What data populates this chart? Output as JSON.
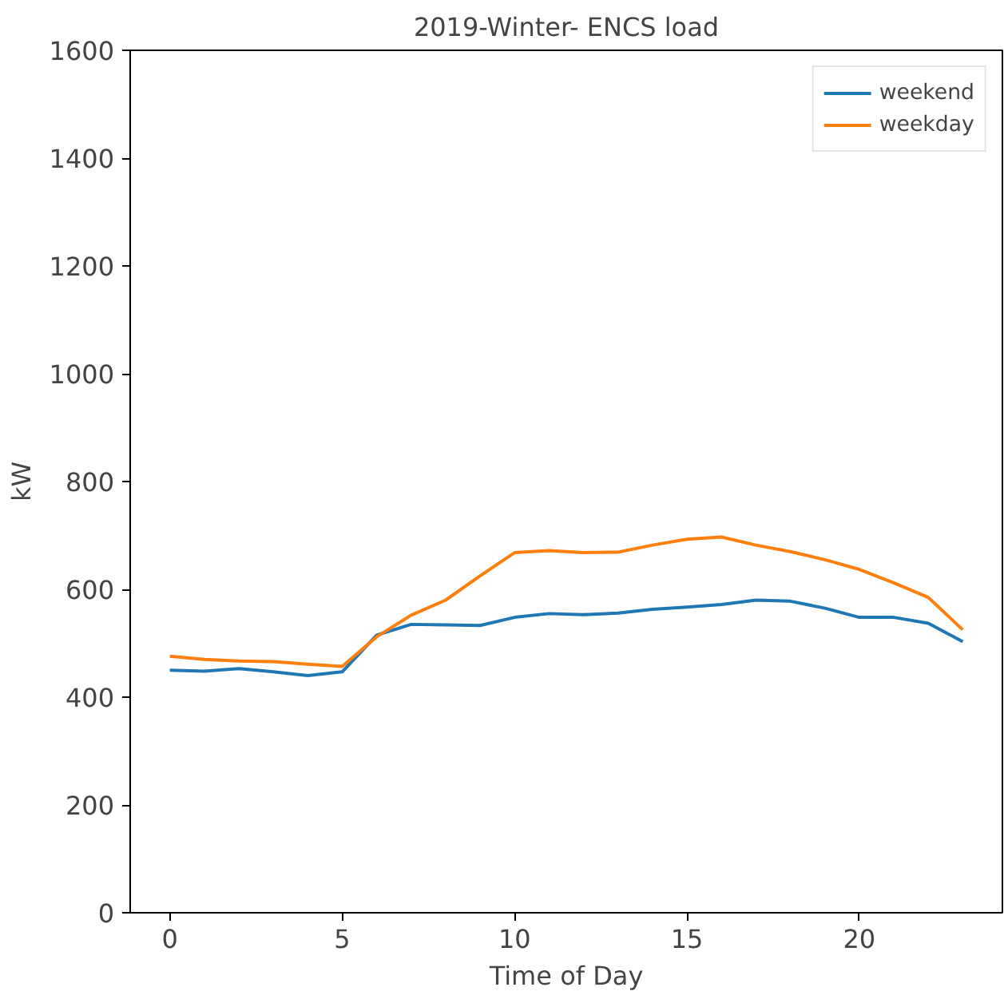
{
  "chart_data": {
    "type": "line",
    "title": "2019-Winter- ENCS load",
    "xlabel": "Time of Day",
    "ylabel": "kW",
    "x": [
      0,
      1,
      2,
      3,
      4,
      5,
      6,
      7,
      8,
      9,
      10,
      11,
      12,
      13,
      14,
      15,
      16,
      17,
      18,
      19,
      20,
      21,
      22,
      23
    ],
    "series": [
      {
        "name": "weekend",
        "color": "#1f77b4",
        "values": [
          450,
          448,
          453,
          447,
          440,
          447,
          515,
          535,
          534,
          533,
          548,
          555,
          553,
          556,
          563,
          567,
          572,
          580,
          578,
          565,
          548,
          548,
          537,
          503
        ]
      },
      {
        "name": "weekday",
        "color": "#ff7f0e",
        "values": [
          476,
          470,
          467,
          466,
          461,
          457,
          512,
          552,
          580,
          625,
          668,
          672,
          668,
          669,
          682,
          693,
          697,
          682,
          670,
          655,
          637,
          612,
          585,
          525
        ]
      }
    ],
    "xlim": [
      -1.15,
      24.15
    ],
    "ylim": [
      0,
      1600
    ],
    "xticks": [
      0,
      5,
      10,
      15,
      20
    ],
    "yticks": [
      0,
      200,
      400,
      600,
      800,
      1000,
      1200,
      1400,
      1600
    ],
    "grid": false,
    "legend": "top right",
    "marker": "none",
    "line_style": "solid"
  }
}
